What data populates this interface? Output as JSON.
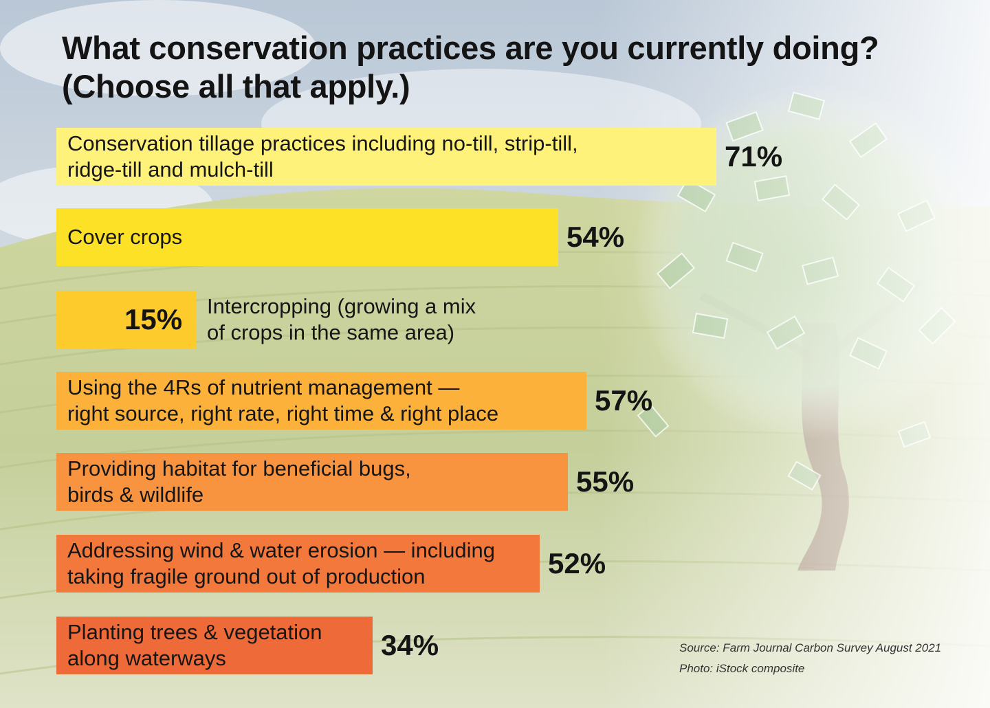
{
  "chart_data": {
    "type": "bar",
    "orientation": "horizontal",
    "title": "What conservation practices are you currently doing?",
    "subtitle": "(Choose all that apply.)",
    "categories": [
      [
        "Conservation tillage practices including no-till, strip-till,",
        "ridge-till and mulch-till"
      ],
      [
        "Cover crops"
      ],
      [
        "Intercropping (growing a mix",
        "of crops in the same area)"
      ],
      [
        "Using the 4Rs of nutrient management —",
        "right source, right rate, right time & right place"
      ],
      [
        "Providing habitat for beneficial bugs,",
        "birds & wildlife"
      ],
      [
        "Addressing wind & water erosion — including",
        "taking fragile ground out of production"
      ],
      [
        "Planting trees & vegetation",
        "along waterways"
      ]
    ],
    "values": [
      71,
      54,
      15,
      57,
      55,
      52,
      34
    ],
    "value_labels": [
      "71%",
      "54%",
      "15%",
      "57%",
      "55%",
      "52%",
      "34%"
    ],
    "unit": "%",
    "xlim": [
      0,
      71
    ],
    "bar_colors": [
      "#fff27a",
      "#fde126",
      "#fdcc2c",
      "#fcb13b",
      "#f8943f",
      "#f2793b",
      "#ee6a38"
    ],
    "grid": false,
    "legend": "none"
  },
  "source": "Source: Farm Journal Carbon Survey August 2021",
  "photo_credit": "Photo: iStock composite"
}
